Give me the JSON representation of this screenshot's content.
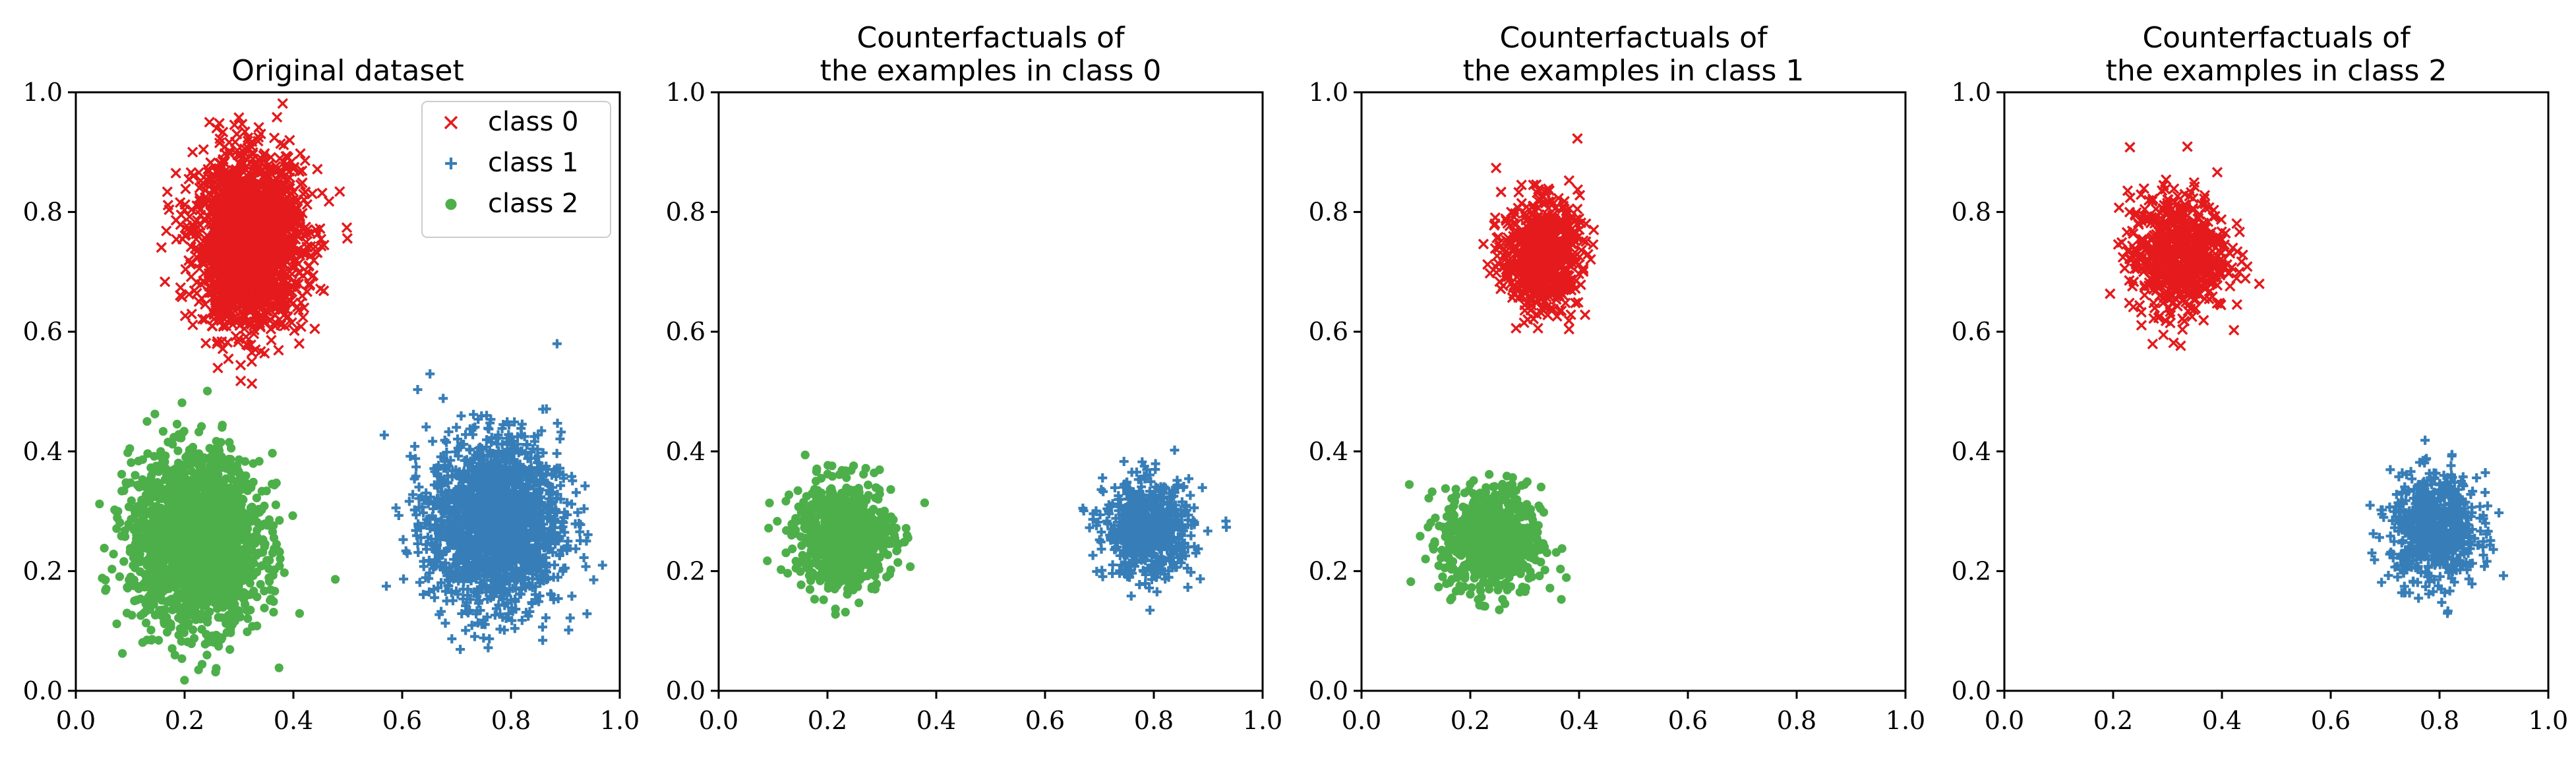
{
  "figure": {
    "legend_position": "top-right of first panel"
  },
  "chart_data": [
    {
      "type": "scatter",
      "title_lines": [
        "Original dataset"
      ],
      "xlim": [
        0.0,
        1.0
      ],
      "ylim": [
        0.0,
        1.0
      ],
      "xticks": [
        "0.0",
        "0.2",
        "0.4",
        "0.6",
        "0.8",
        "1.0"
      ],
      "yticks": [
        "0.0",
        "0.2",
        "0.4",
        "0.6",
        "0.8",
        "1.0"
      ],
      "grid": false,
      "legend": [
        {
          "label": "class 0",
          "color": "#e41a1c",
          "marker": "x"
        },
        {
          "label": "class 1",
          "color": "#377eb8",
          "marker": "plus"
        },
        {
          "label": "class 2",
          "color": "#4daf4a",
          "marker": "circle"
        }
      ],
      "clusters": [
        {
          "class": 0,
          "color": "#e41a1c",
          "marker": "x",
          "center": [
            0.32,
            0.75
          ],
          "spread": [
            0.05,
            0.07
          ],
          "approx_points": 2000
        },
        {
          "class": 1,
          "color": "#377eb8",
          "marker": "plus",
          "center": [
            0.77,
            0.28
          ],
          "spread": [
            0.06,
            0.07
          ],
          "approx_points": 2000
        },
        {
          "class": 2,
          "color": "#4daf4a",
          "marker": "circle",
          "center": [
            0.22,
            0.25
          ],
          "spread": [
            0.06,
            0.07
          ],
          "approx_points": 2000
        }
      ]
    },
    {
      "type": "scatter",
      "title_lines": [
        "Counterfactuals of",
        "the examples in class 0"
      ],
      "xlim": [
        0.0,
        1.0
      ],
      "ylim": [
        0.0,
        1.0
      ],
      "xticks": [
        "0.0",
        "0.2",
        "0.4",
        "0.6",
        "0.8",
        "1.0"
      ],
      "yticks": [
        "0.0",
        "0.2",
        "0.4",
        "0.6",
        "0.8",
        "1.0"
      ],
      "grid": false,
      "clusters": [
        {
          "class": 1,
          "color": "#377eb8",
          "marker": "plus",
          "center": [
            0.79,
            0.27
          ],
          "spread": [
            0.04,
            0.04
          ],
          "approx_points": 700
        },
        {
          "class": 2,
          "color": "#4daf4a",
          "marker": "circle",
          "center": [
            0.23,
            0.26
          ],
          "spread": [
            0.045,
            0.045
          ],
          "approx_points": 700
        }
      ]
    },
    {
      "type": "scatter",
      "title_lines": [
        "Counterfactuals of",
        "the examples in class 1"
      ],
      "xlim": [
        0.0,
        1.0
      ],
      "ylim": [
        0.0,
        1.0
      ],
      "xticks": [
        "0.0",
        "0.2",
        "0.4",
        "0.6",
        "0.8",
        "1.0"
      ],
      "yticks": [
        "0.0",
        "0.2",
        "0.4",
        "0.6",
        "0.8",
        "1.0"
      ],
      "grid": false,
      "clusters": [
        {
          "class": 0,
          "color": "#e41a1c",
          "marker": "x",
          "center": [
            0.33,
            0.73
          ],
          "spread": [
            0.035,
            0.045
          ],
          "approx_points": 700
        },
        {
          "class": 2,
          "color": "#4daf4a",
          "marker": "circle",
          "center": [
            0.24,
            0.25
          ],
          "spread": [
            0.045,
            0.045
          ],
          "approx_points": 700
        }
      ]
    },
    {
      "type": "scatter",
      "title_lines": [
        "Counterfactuals of",
        "the examples in class 2"
      ],
      "xlim": [
        0.0,
        1.0
      ],
      "ylim": [
        0.0,
        1.0
      ],
      "xticks": [
        "0.0",
        "0.2",
        "0.4",
        "0.6",
        "0.8",
        "1.0"
      ],
      "yticks": [
        "0.0",
        "0.2",
        "0.4",
        "0.6",
        "0.8",
        "1.0"
      ],
      "grid": false,
      "clusters": [
        {
          "class": 0,
          "color": "#e41a1c",
          "marker": "x",
          "center": [
            0.32,
            0.73
          ],
          "spread": [
            0.045,
            0.05
          ],
          "approx_points": 700
        },
        {
          "class": 1,
          "color": "#377eb8",
          "marker": "plus",
          "center": [
            0.79,
            0.27
          ],
          "spread": [
            0.04,
            0.045
          ],
          "approx_points": 700
        }
      ]
    }
  ]
}
